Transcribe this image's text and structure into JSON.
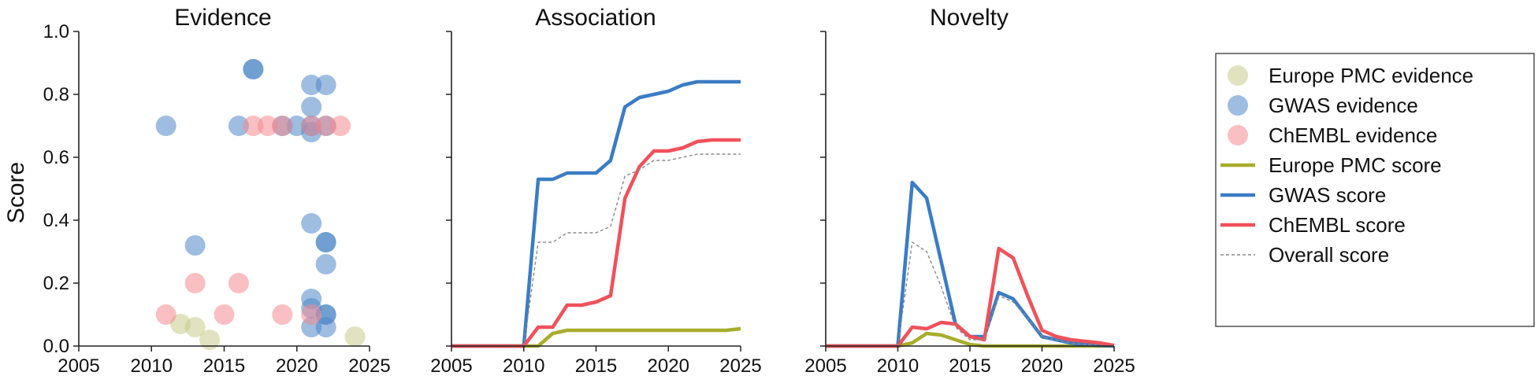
{
  "chart_data": [
    {
      "type": "scatter",
      "title": "Evidence",
      "xlabel": "",
      "ylabel": "Score",
      "xlim": [
        2005,
        2025
      ],
      "ylim": [
        0.0,
        1.0
      ],
      "xticks": [
        "2005",
        "2010",
        "2015",
        "2020",
        "2025"
      ],
      "yticks": [
        "0.0",
        "0.2",
        "0.4",
        "0.6",
        "0.8",
        "1.0"
      ],
      "grid": false,
      "series": [
        {
          "name": "Europe PMC evidence",
          "color": "#c8cc8c",
          "points": [
            [
              2012,
              0.07
            ],
            [
              2013,
              0.06
            ],
            [
              2014,
              0.02
            ],
            [
              2024,
              0.03
            ]
          ]
        },
        {
          "name": "GWAS evidence",
          "color": "#4f86c6",
          "points": [
            [
              2011,
              0.7
            ],
            [
              2013,
              0.32
            ],
            [
              2016,
              0.7
            ],
            [
              2017,
              0.88
            ],
            [
              2017,
              0.88
            ],
            [
              2019,
              0.7
            ],
            [
              2020,
              0.7
            ],
            [
              2021,
              0.83
            ],
            [
              2021,
              0.76
            ],
            [
              2021,
              0.68
            ],
            [
              2021,
              0.39
            ],
            [
              2021,
              0.15
            ],
            [
              2021,
              0.12
            ],
            [
              2021,
              0.06
            ],
            [
              2021,
              0.7
            ],
            [
              2022,
              0.83
            ],
            [
              2022,
              0.7
            ],
            [
              2022,
              0.33
            ],
            [
              2022,
              0.33
            ],
            [
              2022,
              0.26
            ],
            [
              2022,
              0.1
            ],
            [
              2022,
              0.1
            ],
            [
              2022,
              0.06
            ]
          ]
        },
        {
          "name": "ChEMBL evidence",
          "color": "#f48a90",
          "points": [
            [
              2011,
              0.1
            ],
            [
              2013,
              0.2
            ],
            [
              2015,
              0.1
            ],
            [
              2016,
              0.2
            ],
            [
              2017,
              0.7
            ],
            [
              2018,
              0.7
            ],
            [
              2019,
              0.7
            ],
            [
              2019,
              0.1
            ],
            [
              2021,
              0.7
            ],
            [
              2021,
              0.1
            ],
            [
              2022,
              0.7
            ],
            [
              2023,
              0.7
            ]
          ]
        }
      ]
    },
    {
      "type": "line",
      "title": "Association",
      "xlabel": "",
      "ylabel": "",
      "xlim": [
        2005,
        2025
      ],
      "ylim": [
        0.0,
        1.0
      ],
      "xticks": [
        "2005",
        "2010",
        "2015",
        "2020",
        "2025"
      ],
      "grid": false,
      "x": [
        2005,
        2006,
        2007,
        2008,
        2009,
        2010,
        2011,
        2012,
        2013,
        2014,
        2015,
        2016,
        2017,
        2018,
        2019,
        2020,
        2021,
        2022,
        2023,
        2024,
        2025
      ],
      "series": [
        {
          "name": "Europe PMC score",
          "color": "#a8ad2c",
          "values": [
            0,
            0,
            0,
            0,
            0,
            0,
            0,
            0.04,
            0.05,
            0.05,
            0.05,
            0.05,
            0.05,
            0.05,
            0.05,
            0.05,
            0.05,
            0.05,
            0.05,
            0.05,
            0.055
          ]
        },
        {
          "name": "GWAS score",
          "color": "#3b7cc4",
          "values": [
            0,
            0,
            0,
            0,
            0,
            0,
            0.53,
            0.53,
            0.55,
            0.55,
            0.55,
            0.59,
            0.76,
            0.79,
            0.8,
            0.81,
            0.83,
            0.84,
            0.84,
            0.84,
            0.84
          ]
        },
        {
          "name": "ChEMBL score",
          "color": "#f0515b",
          "values": [
            0,
            0,
            0,
            0,
            0,
            0,
            0.06,
            0.06,
            0.13,
            0.13,
            0.14,
            0.16,
            0.47,
            0.57,
            0.62,
            0.62,
            0.63,
            0.65,
            0.655,
            0.655,
            0.655
          ]
        },
        {
          "name": "Overall score",
          "color": "#8a8a8a",
          "dashed": true,
          "values": [
            0,
            0,
            0,
            0,
            0,
            0,
            0.33,
            0.33,
            0.36,
            0.36,
            0.36,
            0.38,
            0.54,
            0.56,
            0.59,
            0.59,
            0.6,
            0.61,
            0.61,
            0.61,
            0.61
          ]
        }
      ]
    },
    {
      "type": "line",
      "title": "Novelty",
      "xlabel": "",
      "ylabel": "",
      "xlim": [
        2005,
        2025
      ],
      "ylim": [
        0.0,
        1.0
      ],
      "xticks": [
        "2005",
        "2010",
        "2015",
        "2020",
        "2025"
      ],
      "grid": false,
      "x": [
        2005,
        2006,
        2007,
        2008,
        2009,
        2010,
        2011,
        2012,
        2013,
        2014,
        2015,
        2016,
        2017,
        2018,
        2019,
        2020,
        2021,
        2022,
        2023,
        2024,
        2025
      ],
      "series": [
        {
          "name": "Europe PMC score",
          "color": "#a8ad2c",
          "values": [
            0,
            0,
            0,
            0,
            0,
            0,
            0.01,
            0.04,
            0.035,
            0.02,
            0.005,
            0,
            0,
            0,
            0,
            0,
            0,
            0,
            0,
            0,
            0
          ]
        },
        {
          "name": "GWAS score",
          "color": "#3b7cc4",
          "values": [
            0,
            0,
            0,
            0,
            0,
            0,
            0.52,
            0.47,
            0.27,
            0.07,
            0.03,
            0.03,
            0.17,
            0.15,
            0.09,
            0.03,
            0.02,
            0.01,
            0.005,
            0.002,
            0
          ]
        },
        {
          "name": "ChEMBL score",
          "color": "#f0515b",
          "values": [
            0,
            0,
            0,
            0,
            0,
            0,
            0.06,
            0.055,
            0.075,
            0.07,
            0.03,
            0.02,
            0.31,
            0.28,
            0.16,
            0.05,
            0.03,
            0.02,
            0.015,
            0.01,
            0.002
          ]
        },
        {
          "name": "Overall score",
          "color": "#8a8a8a",
          "dashed": true,
          "values": [
            0,
            0,
            0,
            0,
            0,
            0,
            0.33,
            0.3,
            0.19,
            0.06,
            0.02,
            0.02,
            0.16,
            0.14,
            0.09,
            0.03,
            0.02,
            0.01,
            0.005,
            0.002,
            0
          ]
        }
      ]
    }
  ],
  "legend": {
    "position": "right",
    "items": [
      {
        "label": "Europe PMC evidence",
        "kind": "marker",
        "color": "#c8cc8c"
      },
      {
        "label": "GWAS evidence",
        "kind": "marker",
        "color": "#4f86c6"
      },
      {
        "label": "ChEMBL evidence",
        "kind": "marker",
        "color": "#f48a90"
      },
      {
        "label": "Europe PMC score",
        "kind": "line",
        "color": "#a8ad2c"
      },
      {
        "label": "GWAS score",
        "kind": "line",
        "color": "#3b7cc4"
      },
      {
        "label": "ChEMBL score",
        "kind": "line",
        "color": "#f0515b"
      },
      {
        "label": "Overall score",
        "kind": "dashed",
        "color": "#8a8a8a"
      }
    ]
  }
}
